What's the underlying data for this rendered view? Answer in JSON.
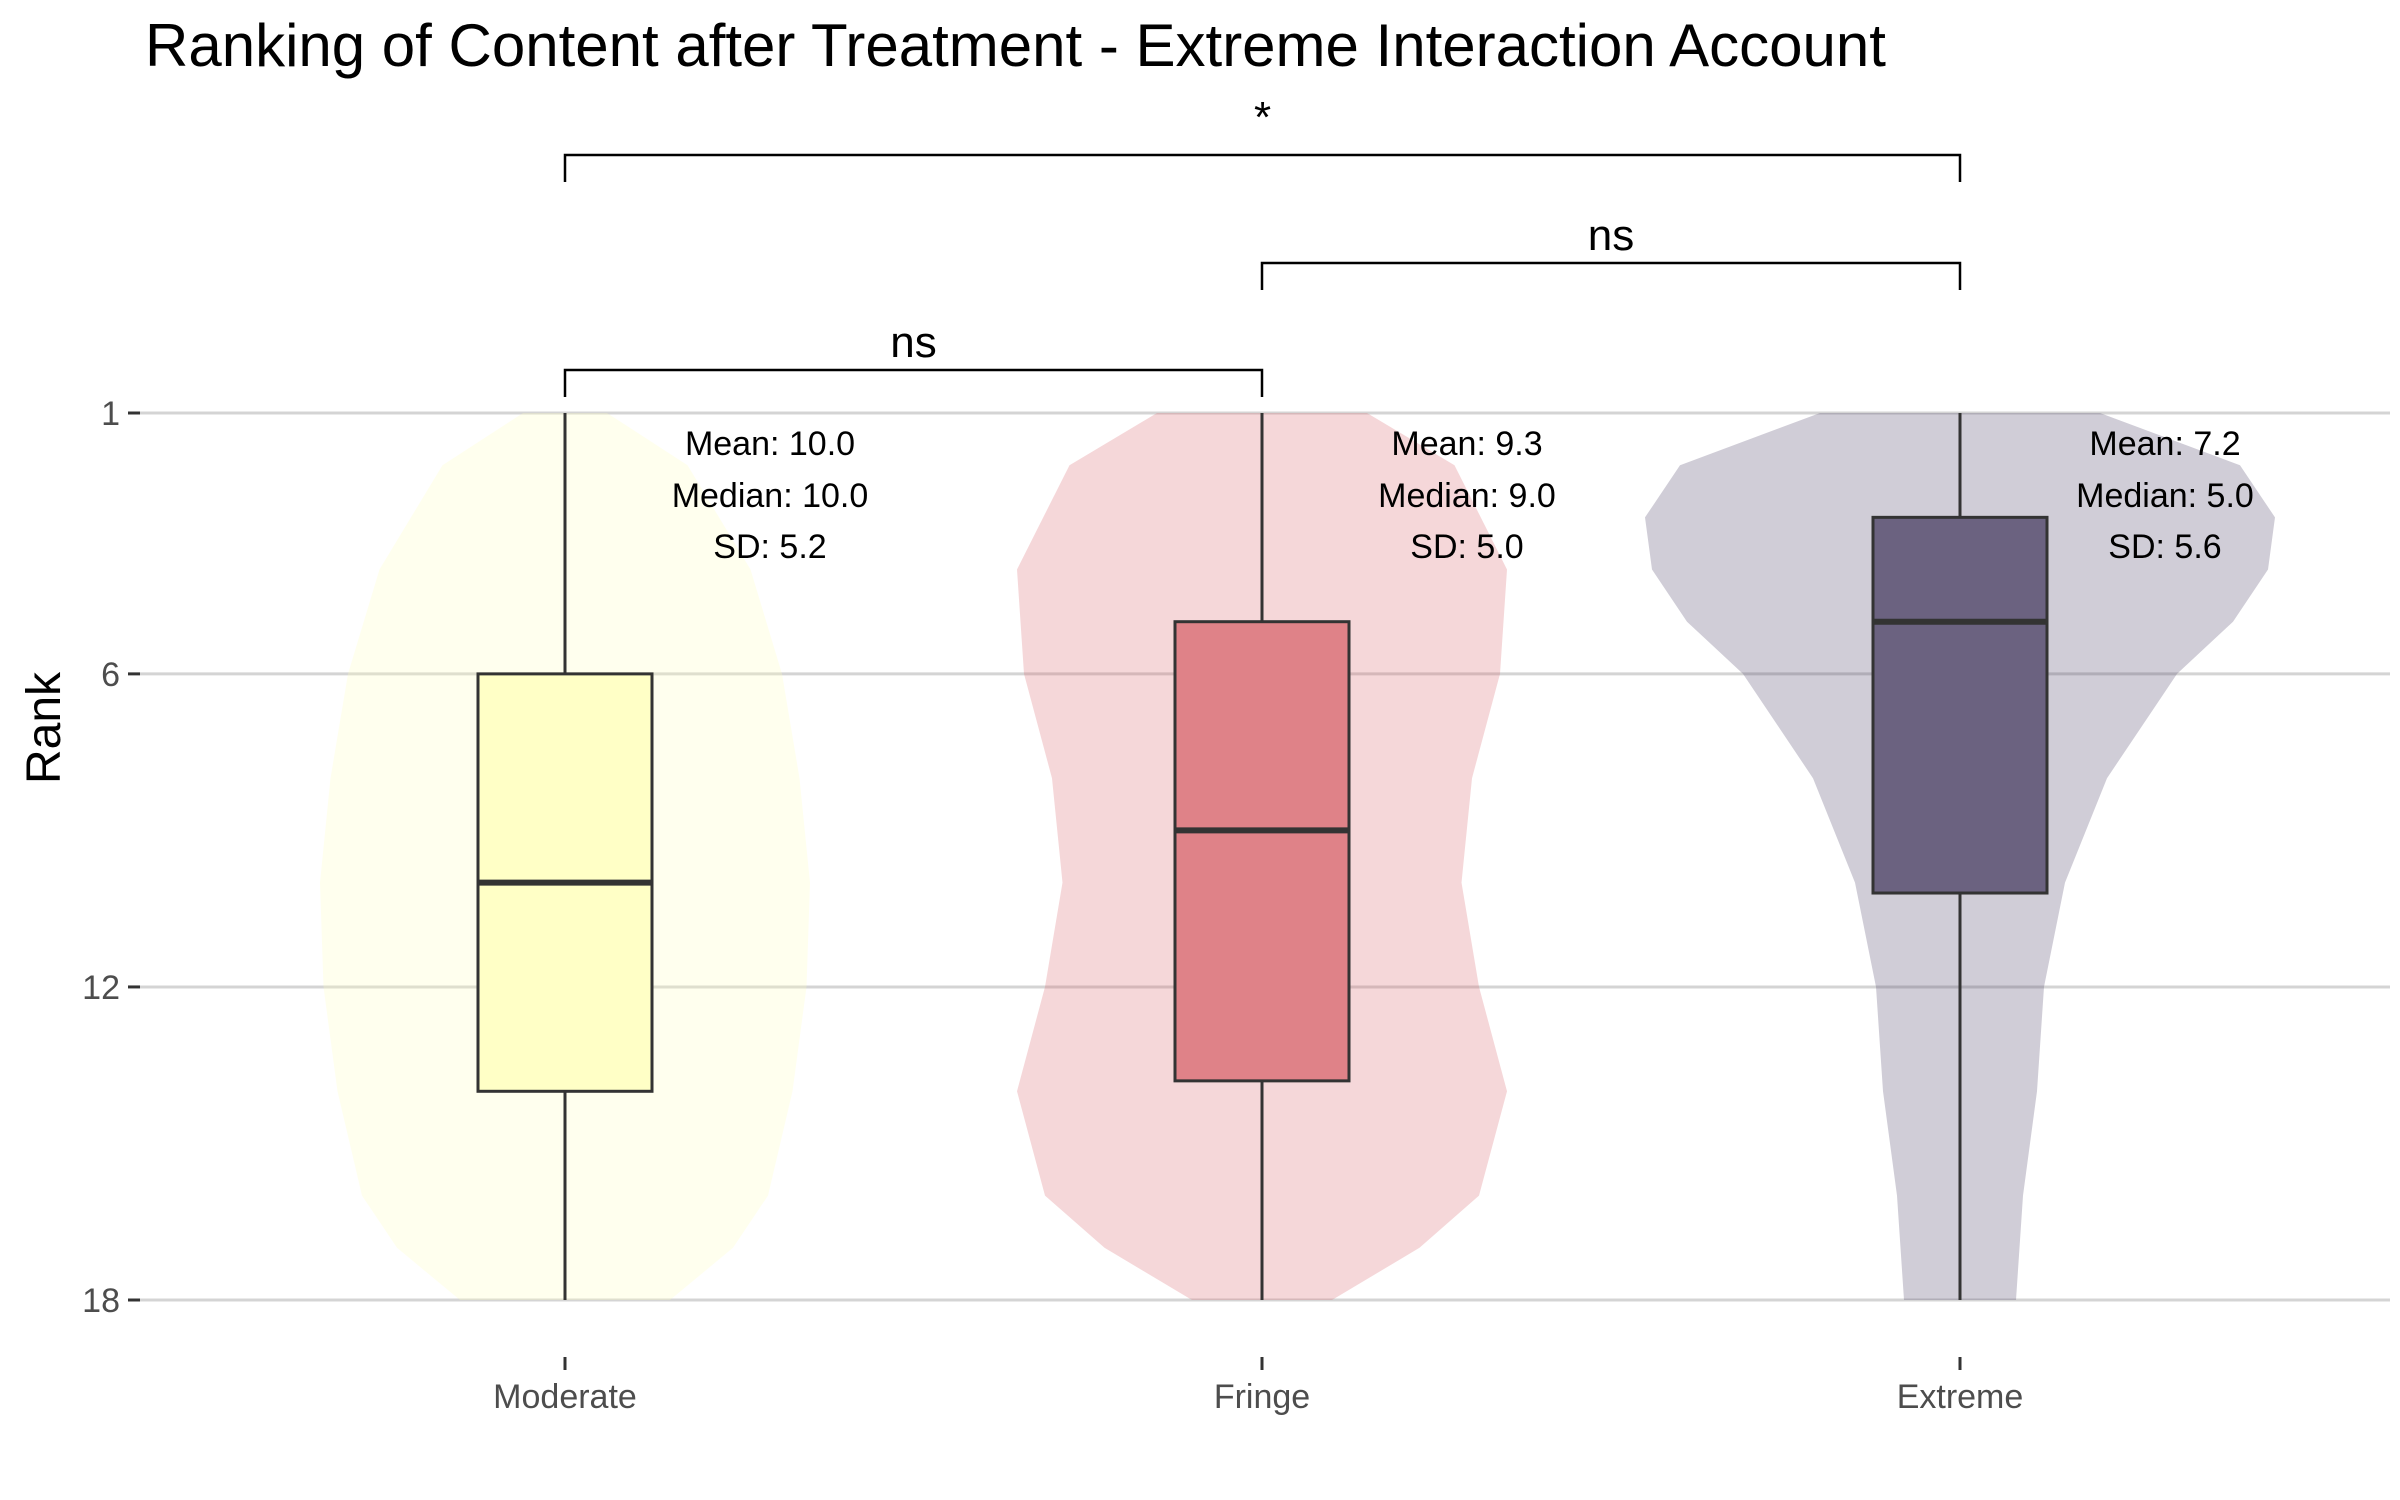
{
  "chart_data": {
    "type": "violin-box",
    "title": "Ranking of Content after Treatment - Extreme Interaction Account",
    "ylabel": "Rank",
    "xlabel": "",
    "y_reversed": true,
    "ylim": [
      1,
      18
    ],
    "yticks": [
      1,
      6,
      12,
      18
    ],
    "grid": "horizontal",
    "categories": [
      "Moderate",
      "Fringe",
      "Extreme"
    ],
    "colors": [
      "#ffffbf",
      "#d8636b",
      "#4a3f66"
    ],
    "box_colors": [
      "#ffffc6",
      "#df8288",
      "#6b6280"
    ],
    "series": [
      {
        "category": "Moderate",
        "min": 1,
        "q1": 6,
        "median": 10,
        "q3": 14,
        "max": 18,
        "stats": {
          "mean": "Mean:  10.0",
          "median": "Median:  10.0",
          "sd": "SD:  5.2"
        },
        "violin": [
          [
            1,
            0.12
          ],
          [
            2,
            0.35
          ],
          [
            4,
            0.53
          ],
          [
            6,
            0.62
          ],
          [
            8,
            0.67
          ],
          [
            10,
            0.7
          ],
          [
            12,
            0.69
          ],
          [
            14,
            0.65
          ],
          [
            16,
            0.58
          ],
          [
            17,
            0.48
          ],
          [
            18,
            0.3
          ]
        ]
      },
      {
        "category": "Fringe",
        "min": 1,
        "q1": 5,
        "median": 9,
        "q3": 13.8,
        "max": 18,
        "stats": {
          "mean": "Mean:  9.3",
          "median": "Median:  9.0",
          "sd": "SD:  5.0"
        },
        "violin": [
          [
            1,
            0.3
          ],
          [
            2,
            0.55
          ],
          [
            4,
            0.7
          ],
          [
            6,
            0.68
          ],
          [
            8,
            0.6
          ],
          [
            10,
            0.57
          ],
          [
            12,
            0.62
          ],
          [
            14,
            0.7
          ],
          [
            16,
            0.62
          ],
          [
            17,
            0.45
          ],
          [
            18,
            0.2
          ]
        ]
      },
      {
        "category": "Extreme",
        "min": 1,
        "q1": 3,
        "median": 5,
        "q3": 10.2,
        "max": 18,
        "stats": {
          "mean": "Mean:  7.2",
          "median": "Median:  5.0",
          "sd": "SD:  5.6"
        },
        "violin": [
          [
            1,
            0.4
          ],
          [
            2,
            0.8
          ],
          [
            3,
            0.9
          ],
          [
            4,
            0.88
          ],
          [
            5,
            0.78
          ],
          [
            6,
            0.62
          ],
          [
            8,
            0.42
          ],
          [
            10,
            0.3
          ],
          [
            12,
            0.24
          ],
          [
            14,
            0.22
          ],
          [
            16,
            0.18
          ],
          [
            17,
            0.17
          ],
          [
            18,
            0.16
          ]
        ]
      }
    ],
    "comparisons": [
      {
        "from": "Moderate",
        "to": "Extreme",
        "label": "*"
      },
      {
        "from": "Fringe",
        "to": "Extreme",
        "label": "ns"
      },
      {
        "from": "Moderate",
        "to": "Fringe",
        "label": "ns"
      }
    ]
  }
}
